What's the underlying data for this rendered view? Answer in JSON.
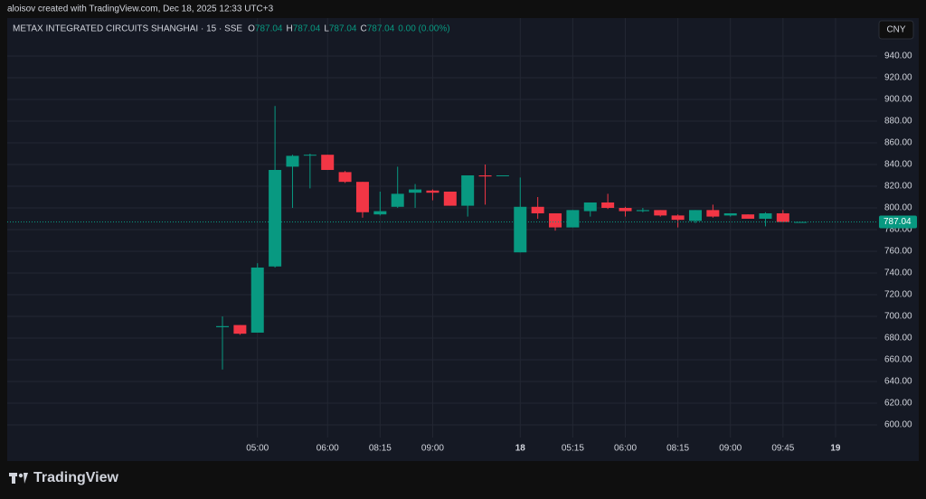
{
  "header": {
    "text": "aloisov created with TradingView.com, Dec 18, 2025 12:33 UTC+3"
  },
  "footer": {
    "logo": "TradingView"
  },
  "currency_button": "CNY",
  "chart_data": {
    "type": "candlestick",
    "title": "METAX INTEGRATED CIRCUITS SHANGHAI · 15 · SSE",
    "ohlc_legend": [
      {
        "label": "O",
        "value": 787.04
      },
      {
        "label": "H",
        "value": 787.04
      },
      {
        "label": "L",
        "value": 787.04
      },
      {
        "label": "C",
        "value": 787.04
      }
    ],
    "change": "0.00 (0.00%)",
    "last_price": 787.04,
    "up_color": "#089981",
    "down_color": "#f23645",
    "grid": true,
    "categories": [
      null,
      null,
      "05:00",
      null,
      null,
      null,
      "06:00",
      null,
      null,
      "08:15",
      null,
      null,
      "09:00",
      null,
      null,
      null,
      null,
      "18",
      null,
      null,
      "05:15",
      null,
      null,
      "06:00",
      null,
      null,
      "08:15",
      null,
      null,
      "09:00",
      null,
      null,
      "09:45",
      null,
      null,
      "19"
    ],
    "open": [
      690,
      692,
      685,
      746,
      838,
      849,
      849,
      833,
      824,
      794,
      801,
      814,
      816,
      815,
      802,
      830,
      830,
      759,
      801,
      795,
      782,
      797,
      805,
      800,
      797,
      798,
      793,
      788,
      798,
      793,
      794,
      790,
      795,
      787,
      null,
      null
    ],
    "high": [
      700,
      692,
      749,
      894,
      849,
      850,
      849,
      834,
      824,
      815,
      838,
      822,
      817,
      815,
      830,
      840,
      830,
      828,
      810,
      795,
      798,
      805,
      813,
      801,
      800,
      798,
      794,
      798,
      803,
      795,
      794,
      796,
      798,
      787.04,
      null,
      null
    ],
    "low": [
      651,
      683,
      685,
      745,
      800,
      818,
      835,
      823,
      791,
      793,
      800,
      800,
      807,
      802,
      792,
      803,
      830,
      759,
      790,
      779,
      782,
      792,
      799,
      792,
      796,
      792,
      782,
      786,
      791,
      792,
      790,
      783,
      787,
      787,
      null,
      null
    ],
    "close": [
      691,
      684,
      745,
      835,
      848,
      849,
      835,
      824,
      796,
      797,
      813,
      817,
      814,
      802,
      830,
      829,
      830,
      801,
      795,
      782,
      798,
      805,
      800,
      797,
      798,
      793,
      789,
      798,
      792,
      795,
      790,
      795,
      787,
      787.04,
      null,
      null
    ],
    "ylim": [
      588.3,
      975
    ],
    "yticks": [
      {
        "value": 600,
        "label": "600.00"
      },
      {
        "value": 620,
        "label": "620.00"
      },
      {
        "value": 640,
        "label": "640.00"
      },
      {
        "value": 660,
        "label": "660.00"
      },
      {
        "value": 680,
        "label": "680.00"
      },
      {
        "value": 700,
        "label": "700.00"
      },
      {
        "value": 720,
        "label": "720.00"
      },
      {
        "value": 740,
        "label": "740.00"
      },
      {
        "value": 760,
        "label": "760.00"
      },
      {
        "value": 780,
        "label": "780.00"
      },
      {
        "value": 800,
        "label": "800.00"
      },
      {
        "value": 820,
        "label": "820.00"
      },
      {
        "value": 840,
        "label": "840.00"
      },
      {
        "value": 860,
        "label": "860.00"
      },
      {
        "value": 880,
        "label": "880.00"
      },
      {
        "value": 900,
        "label": "900.00"
      },
      {
        "value": 920,
        "label": "920.00"
      },
      {
        "value": 940,
        "label": "940.00"
      }
    ]
  }
}
